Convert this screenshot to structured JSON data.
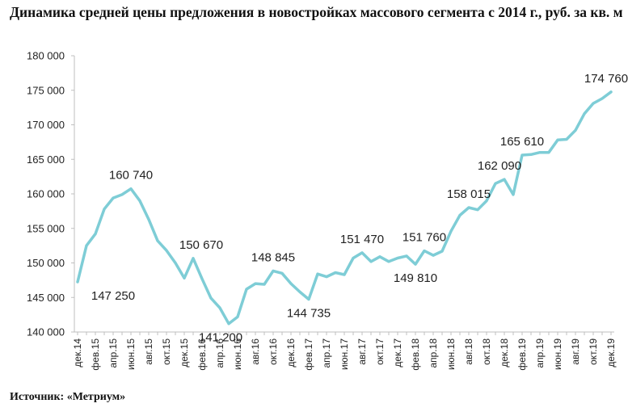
{
  "header": {
    "title": "Динамика средней цены предложения в новостройках массового сегмента с 2014 г., руб. за кв. м"
  },
  "footer": {
    "source": "Источник: «Метриум»"
  },
  "colors": {
    "line": "#7ecdd6",
    "axis": "#bfbfbf",
    "text": "#222222"
  },
  "chart_data": {
    "type": "line",
    "title": "Динамика средней цены предложения в новостройках массового сегмента с 2014 г., руб. за кв. м",
    "xlabel": "",
    "ylabel": "",
    "ylim": [
      140000,
      180000
    ],
    "yticks": [
      140000,
      145000,
      150000,
      155000,
      160000,
      165000,
      170000,
      175000,
      180000
    ],
    "ytick_labels": [
      "140 000",
      "145 000",
      "150 000",
      "155 000",
      "160 000",
      "165 000",
      "170 000",
      "175 000",
      "180 000"
    ],
    "grid": false,
    "x": [
      "дек.14",
      "янв.15",
      "фев.15",
      "мар.15",
      "апр.15",
      "май.15",
      "июн.15",
      "июл.15",
      "авг.15",
      "сен.15",
      "окт.15",
      "ноя.15",
      "дек.15",
      "янв.16",
      "фев.16",
      "мар.16",
      "апр.16",
      "май.16",
      "июн.16",
      "июл.16",
      "авг.16",
      "сен.16",
      "окт.16",
      "ноя.16",
      "дек.16",
      "янв.17",
      "фев.17",
      "мар.17",
      "апр.17",
      "май.17",
      "июн.17",
      "июл.17",
      "авг.17",
      "сен.17",
      "окт.17",
      "ноя.17",
      "дек.17",
      "янв.18",
      "фев.18",
      "мар.18",
      "апр.18",
      "май.18",
      "июн.18",
      "июл.18",
      "авг.18",
      "сен.18",
      "окт.18",
      "ноя.18",
      "дек.18",
      "янв.19",
      "фев.19",
      "мар.19",
      "апр.19",
      "май.19",
      "июн.19",
      "июл.19",
      "авг.19",
      "сен.19",
      "окт.19",
      "ноя.19",
      "дек.19"
    ],
    "x_tick_labels": [
      "дек.14",
      "",
      "фев.15",
      "",
      "апр.15",
      "",
      "июн.15",
      "",
      "авг.15",
      "",
      "окт.15",
      "",
      "дек.15",
      "",
      "фев.16",
      "",
      "апр.16",
      "",
      "июн.16",
      "",
      "авг.16",
      "",
      "окт.16",
      "",
      "дек.16",
      "",
      "фев.17",
      "",
      "апр.17",
      "",
      "июн.17",
      "",
      "авг.17",
      "",
      "окт.17",
      "",
      "дек.17",
      "",
      "фев.18",
      "",
      "апр.18",
      "",
      "июн.18",
      "",
      "авг.18",
      "",
      "окт.18",
      "",
      "дек.18",
      "",
      "фев.19",
      "",
      "апр.19",
      "",
      "июн.19",
      "",
      "авг.19",
      "",
      "окт.19",
      "",
      "дек.19"
    ],
    "series": [
      {
        "values": [
          147250,
          152500,
          154200,
          157800,
          159400,
          159900,
          160740,
          159000,
          156300,
          153200,
          151800,
          150000,
          147800,
          150670,
          147700,
          144900,
          143500,
          141200,
          142200,
          146200,
          147000,
          146900,
          148845,
          148500,
          147000,
          145800,
          144735,
          148400,
          148000,
          148600,
          148300,
          150700,
          151470,
          150200,
          150900,
          150200,
          150700,
          151000,
          149810,
          151760,
          151100,
          151700,
          154600,
          156900,
          158015,
          157700,
          159000,
          161500,
          162090,
          159900,
          165610,
          165700,
          166000,
          166000,
          167800,
          167900,
          169200,
          171600,
          173100,
          173800,
          174760
        ]
      }
    ],
    "data_labels": [
      {
        "index": 0,
        "text": "147 250",
        "position": "below-right"
      },
      {
        "index": 6,
        "text": "160 740",
        "position": "above"
      },
      {
        "index": 13,
        "text": "150 670",
        "position": "above-right"
      },
      {
        "index": 17,
        "text": "141 200",
        "position": "below-left"
      },
      {
        "index": 22,
        "text": "148 845",
        "position": "above"
      },
      {
        "index": 26,
        "text": "144 735",
        "position": "below"
      },
      {
        "index": 32,
        "text": "151 470",
        "position": "above"
      },
      {
        "index": 38,
        "text": "149 810",
        "position": "below"
      },
      {
        "index": 39,
        "text": "151 760",
        "position": "above"
      },
      {
        "index": 44,
        "text": "158 015",
        "position": "above"
      },
      {
        "index": 48,
        "text": "162 090",
        "position": "above-left"
      },
      {
        "index": 50,
        "text": "165 610",
        "position": "above"
      },
      {
        "index": 60,
        "text": "174 760",
        "position": "above-left"
      }
    ]
  }
}
